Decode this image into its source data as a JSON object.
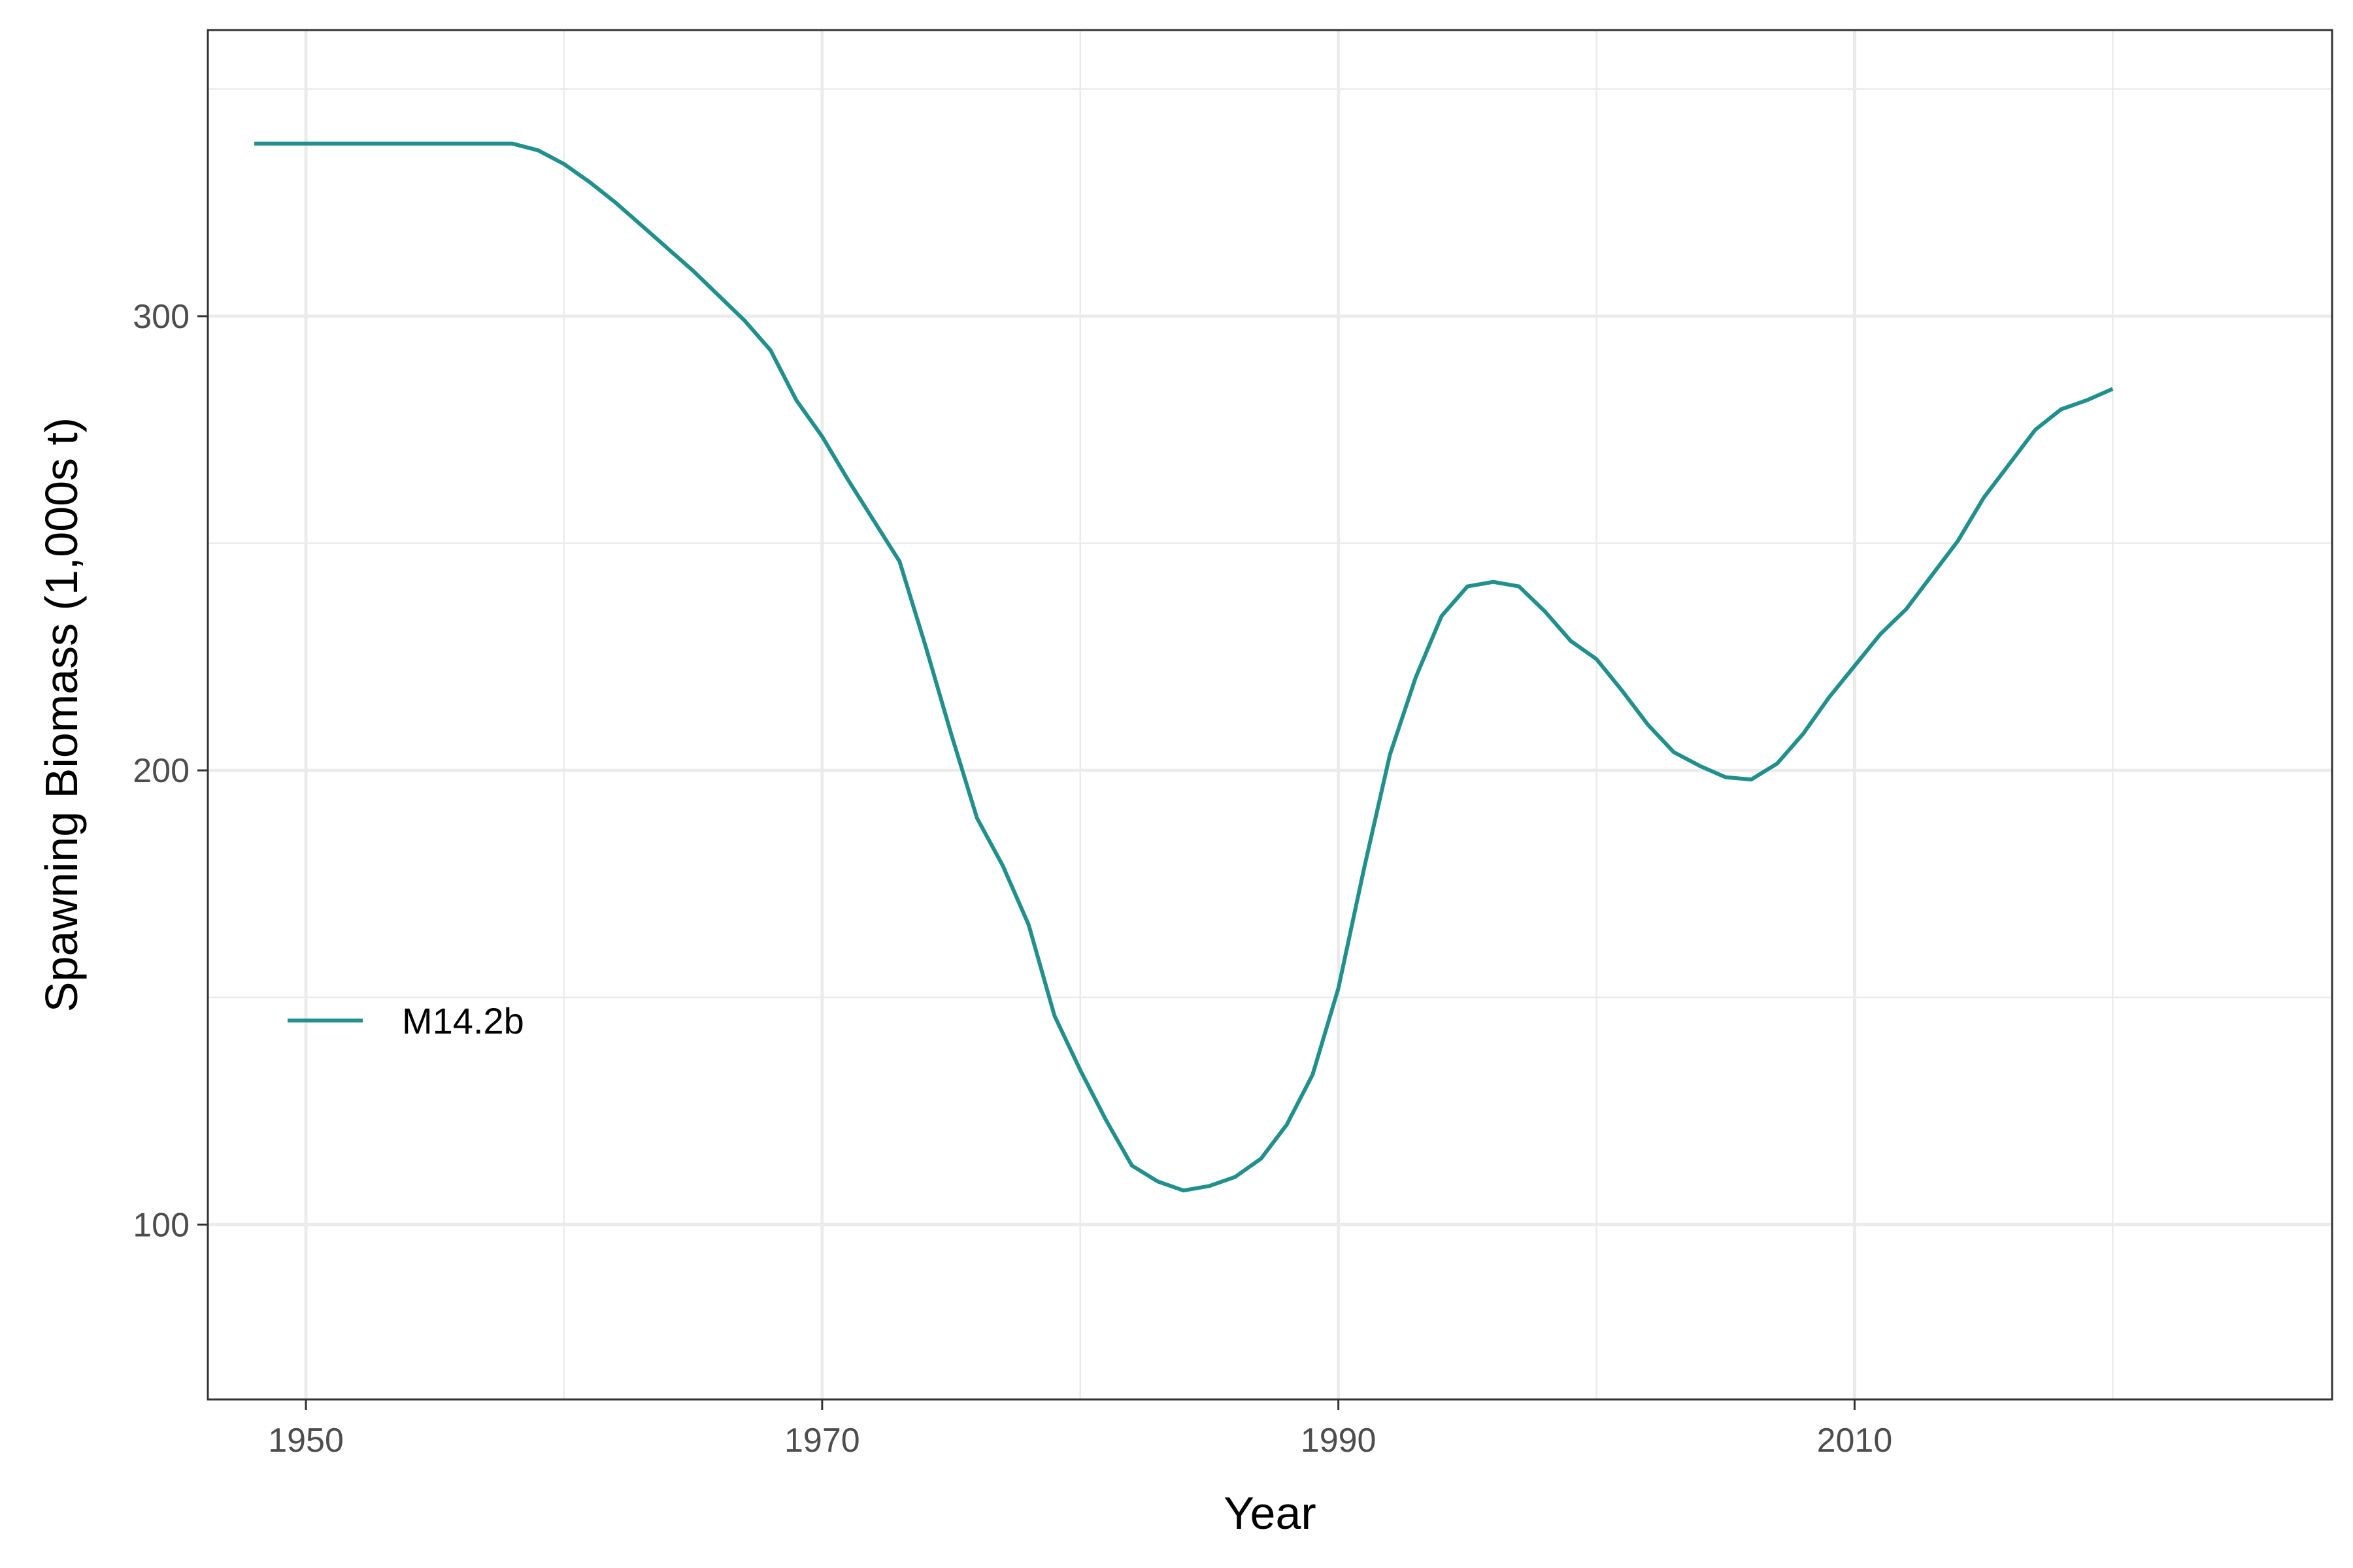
{
  "chart_data": {
    "type": "line",
    "title": "",
    "xlabel": "Year",
    "ylabel": "Spawning Biomass (1,000s t)",
    "xlim": [
      1946.2,
      2028.5
    ],
    "ylim": [
      61.5,
      363
    ],
    "x_ticks": [
      1950,
      1970,
      1990,
      2010
    ],
    "x_minor_ticks": [
      1960,
      1980,
      2000,
      2020
    ],
    "y_ticks": [
      100,
      200,
      300
    ],
    "y_minor_ticks": [
      150,
      250,
      350
    ],
    "grid": true,
    "legend_position": "left-middle",
    "colors": {
      "line": "#21908C",
      "grid": "#ebebeb",
      "panel_border": "#333333",
      "tick_label": "#4d4d4d"
    },
    "series": [
      {
        "name": "M14.2b",
        "x": [
          1948,
          1949,
          1950,
          1951,
          1952,
          1953,
          1954,
          1955,
          1956,
          1957,
          1958,
          1959,
          1960,
          1961,
          1962,
          1963,
          1964,
          1965,
          1966,
          1967,
          1968,
          1969,
          1970,
          1971,
          1972,
          1973,
          1974,
          1975,
          1976,
          1977,
          1978,
          1979,
          1980,
          1981,
          1982,
          1983,
          1984,
          1985,
          1986,
          1987,
          1988,
          1989,
          1990,
          1991,
          1992,
          1993,
          1994,
          1995,
          1996,
          1997,
          1998,
          1999,
          2000,
          2001,
          2002,
          2003,
          2004,
          2005,
          2006,
          2007,
          2008,
          2009,
          2010,
          2011,
          2012,
          2013,
          2014,
          2015,
          2016,
          2017,
          2018,
          2019,
          2020
        ],
        "y": [
          338,
          338,
          338,
          338,
          338,
          338,
          338,
          338,
          338,
          338,
          338,
          336.5,
          333.5,
          329.5,
          325,
          320,
          315,
          310,
          304.5,
          299,
          292.5,
          281.5,
          273.5,
          264,
          255,
          246,
          227.5,
          208,
          189.5,
          179,
          166,
          146,
          134,
          123,
          113,
          109.5,
          107.5,
          108.5,
          110.5,
          114.5,
          122,
          133,
          152,
          178.5,
          203.5,
          220.5,
          234,
          240.5,
          241.5,
          240.5,
          235,
          228.5,
          224.5,
          217.5,
          210,
          204,
          201,
          198.5,
          198,
          201.5,
          208,
          216,
          223,
          230,
          235.5,
          243,
          250.5,
          260,
          267.5,
          275,
          279.5,
          281.5,
          284
        ]
      }
    ]
  }
}
